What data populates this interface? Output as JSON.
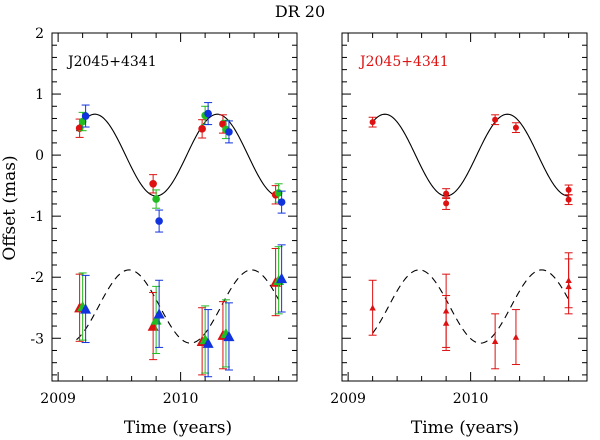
{
  "figure": {
    "title": "DR 20"
  },
  "chart_data": [
    {
      "type": "scatter",
      "panel": "left",
      "label": "J2045+4341",
      "label_color": "#000000",
      "xlabel": "Time (years)",
      "ylabel": "Offset (mas)",
      "xlim": [
        2008.95,
        2010.95
      ],
      "ylim": [
        -3.7,
        2.0
      ],
      "xticks": [
        2009,
        2010
      ],
      "yticks": [
        -3,
        -2,
        -1,
        0,
        1,
        2
      ],
      "grid": false,
      "model_curves": [
        {
          "name": "model-solid",
          "style": "solid",
          "color": "#000000",
          "x_range": [
            2009.15,
            2010.8
          ],
          "offset": 0.0,
          "amplitude": 0.67,
          "period": 1.0,
          "phase_time": 2009.3
        },
        {
          "name": "model-dashed",
          "style": "dashed",
          "color": "#000000",
          "x_range": [
            2009.15,
            2010.8
          ],
          "offset": -2.48,
          "amplitude": 0.6,
          "period": 1.0,
          "phase_time": 2009.58
        }
      ],
      "series": [
        {
          "name": "epoch-red",
          "color": "#dd1111",
          "points": [
            {
              "x": 2009.2,
              "y": 0.44,
              "err": 0.15,
              "marker": "circle"
            },
            {
              "x": 2009.8,
              "y": -0.47,
              "err": 0.15,
              "marker": "circle"
            },
            {
              "x": 2010.2,
              "y": 0.43,
              "err": 0.15,
              "marker": "circle"
            },
            {
              "x": 2010.37,
              "y": 0.51,
              "err": 0.15,
              "marker": "circle"
            },
            {
              "x": 2010.8,
              "y": -0.65,
              "err": 0.15,
              "marker": "circle"
            },
            {
              "x": 2009.2,
              "y": -2.5,
              "err": 0.55,
              "marker": "triangle"
            },
            {
              "x": 2009.8,
              "y": -2.8,
              "err": 0.55,
              "marker": "triangle"
            },
            {
              "x": 2010.2,
              "y": -3.05,
              "err": 0.55,
              "marker": "triangle"
            },
            {
              "x": 2010.37,
              "y": -2.95,
              "err": 0.55,
              "marker": "triangle"
            },
            {
              "x": 2010.8,
              "y": -2.08,
              "err": 0.55,
              "marker": "triangle"
            }
          ]
        },
        {
          "name": "epoch-green",
          "color": "#22bb22",
          "points": [
            {
              "x": 2009.2,
              "y": 0.55,
              "err": 0.15,
              "marker": "circle"
            },
            {
              "x": 2009.8,
              "y": -0.72,
              "err": 0.15,
              "marker": "circle"
            },
            {
              "x": 2010.2,
              "y": 0.65,
              "err": 0.15,
              "marker": "circle"
            },
            {
              "x": 2010.37,
              "y": 0.42,
              "err": 0.15,
              "marker": "circle"
            },
            {
              "x": 2010.8,
              "y": -0.62,
              "err": 0.15,
              "marker": "circle"
            },
            {
              "x": 2009.2,
              "y": -2.48,
              "err": 0.55,
              "marker": "triangle"
            },
            {
              "x": 2009.8,
              "y": -2.7,
              "err": 0.55,
              "marker": "triangle"
            },
            {
              "x": 2010.2,
              "y": -3.02,
              "err": 0.55,
              "marker": "triangle"
            },
            {
              "x": 2010.37,
              "y": -2.92,
              "err": 0.55,
              "marker": "triangle"
            },
            {
              "x": 2010.8,
              "y": -2.05,
              "err": 0.55,
              "marker": "triangle"
            }
          ]
        },
        {
          "name": "epoch-blue",
          "color": "#1133dd",
          "points": [
            {
              "x": 2009.2,
              "y": 0.64,
              "err": 0.18,
              "marker": "circle"
            },
            {
              "x": 2009.8,
              "y": -1.08,
              "err": 0.18,
              "marker": "circle"
            },
            {
              "x": 2010.2,
              "y": 0.68,
              "err": 0.18,
              "marker": "circle"
            },
            {
              "x": 2010.37,
              "y": 0.38,
              "err": 0.18,
              "marker": "circle"
            },
            {
              "x": 2010.8,
              "y": -0.77,
              "err": 0.18,
              "marker": "circle"
            },
            {
              "x": 2009.2,
              "y": -2.52,
              "err": 0.55,
              "marker": "triangle"
            },
            {
              "x": 2009.8,
              "y": -2.6,
              "err": 0.55,
              "marker": "triangle"
            },
            {
              "x": 2010.2,
              "y": -3.08,
              "err": 0.55,
              "marker": "triangle"
            },
            {
              "x": 2010.37,
              "y": -2.97,
              "err": 0.55,
              "marker": "triangle"
            },
            {
              "x": 2010.8,
              "y": -2.02,
              "err": 0.55,
              "marker": "triangle"
            }
          ]
        }
      ]
    },
    {
      "type": "scatter",
      "panel": "right",
      "label": "J2045+4341",
      "label_color": "#dd1111",
      "xlabel": "Time (years)",
      "ylabel": "",
      "xlim": [
        2008.95,
        2010.95
      ],
      "ylim": [
        -3.7,
        2.0
      ],
      "xticks": [
        2009,
        2010
      ],
      "yticks": [
        -3,
        -2,
        -1,
        0,
        1,
        2
      ],
      "grid": false,
      "model_curves": [
        {
          "name": "model-solid",
          "style": "solid",
          "color": "#000000",
          "x_range": [
            2009.2,
            2010.8
          ],
          "offset": 0.0,
          "amplitude": 0.67,
          "period": 1.0,
          "phase_time": 2009.3
        },
        {
          "name": "model-dashed",
          "style": "dashed",
          "color": "#000000",
          "x_range": [
            2009.2,
            2010.8
          ],
          "offset": -2.48,
          "amplitude": 0.6,
          "period": 1.0,
          "phase_time": 2009.58
        }
      ],
      "series": [
        {
          "name": "combined",
          "color": "#dd1111",
          "points": [
            {
              "x": 2009.2,
              "y": 0.54,
              "err": 0.08,
              "marker": "circle"
            },
            {
              "x": 2009.8,
              "y": -0.63,
              "err": 0.08,
              "marker": "circle"
            },
            {
              "x": 2009.8,
              "y": -0.79,
              "err": 0.1,
              "marker": "circle"
            },
            {
              "x": 2010.2,
              "y": 0.58,
              "err": 0.08,
              "marker": "circle"
            },
            {
              "x": 2010.37,
              "y": 0.45,
              "err": 0.08,
              "marker": "circle"
            },
            {
              "x": 2010.8,
              "y": -0.57,
              "err": 0.08,
              "marker": "circle"
            },
            {
              "x": 2010.8,
              "y": -0.73,
              "err": 0.08,
              "marker": "circle"
            },
            {
              "x": 2009.2,
              "y": -2.5,
              "err": 0.45,
              "marker": "triangle"
            },
            {
              "x": 2009.8,
              "y": -2.55,
              "err": 0.6,
              "marker": "triangle"
            },
            {
              "x": 2009.8,
              "y": -2.75,
              "err": 0.45,
              "marker": "triangle"
            },
            {
              "x": 2010.2,
              "y": -3.05,
              "err": 0.45,
              "marker": "triangle"
            },
            {
              "x": 2010.37,
              "y": -2.98,
              "err": 0.45,
              "marker": "triangle"
            },
            {
              "x": 2010.8,
              "y": -2.05,
              "err": 0.45,
              "marker": "triangle"
            },
            {
              "x": 2010.8,
              "y": -2.15,
              "err": 0.45,
              "marker": "triangle"
            }
          ]
        }
      ]
    }
  ]
}
